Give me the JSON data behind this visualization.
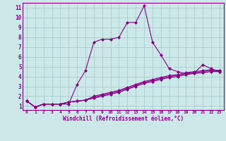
{
  "xlabel": "Windchill (Refroidissement éolien,°C)",
  "bg_color": "#cce8e8",
  "line_color": "#880088",
  "grid_color": "#aacccc",
  "series": [
    [
      1.5,
      0.9,
      1.2,
      1.2,
      1.2,
      1.2,
      3.2,
      4.6,
      7.5,
      7.8,
      7.8,
      8.0,
      9.5,
      9.5,
      11.2,
      7.5,
      6.2,
      4.8,
      4.5,
      4.3,
      4.4,
      5.2,
      4.8,
      4.5
    ],
    [
      1.5,
      0.9,
      1.2,
      1.2,
      1.2,
      1.4,
      1.5,
      1.6,
      1.8,
      2.0,
      2.2,
      2.4,
      2.7,
      3.0,
      3.3,
      3.5,
      3.7,
      3.9,
      4.0,
      4.2,
      4.3,
      4.4,
      4.5,
      4.5
    ],
    [
      1.5,
      0.9,
      1.2,
      1.2,
      1.2,
      1.4,
      1.5,
      1.6,
      1.9,
      2.1,
      2.3,
      2.5,
      2.8,
      3.1,
      3.4,
      3.6,
      3.8,
      4.0,
      4.1,
      4.3,
      4.4,
      4.5,
      4.6,
      4.6
    ],
    [
      1.5,
      0.9,
      1.2,
      1.2,
      1.2,
      1.4,
      1.5,
      1.6,
      2.0,
      2.2,
      2.4,
      2.6,
      2.9,
      3.2,
      3.5,
      3.7,
      3.9,
      4.1,
      4.2,
      4.4,
      4.5,
      4.6,
      4.7,
      4.6
    ]
  ],
  "xlim_min": -0.5,
  "xlim_max": 23.5,
  "ylim_min": 0.6,
  "ylim_max": 11.5,
  "xticks": [
    0,
    1,
    2,
    3,
    4,
    5,
    6,
    7,
    8,
    9,
    10,
    11,
    12,
    13,
    14,
    15,
    16,
    17,
    18,
    19,
    20,
    21,
    22,
    23
  ],
  "yticks": [
    1,
    2,
    3,
    4,
    5,
    6,
    7,
    8,
    9,
    10,
    11
  ],
  "marker": "D",
  "markersize": 2.0,
  "linewidth": 0.8,
  "xlabel_fontsize": 5.5,
  "xtick_fontsize": 4.5,
  "ytick_fontsize": 5.5
}
